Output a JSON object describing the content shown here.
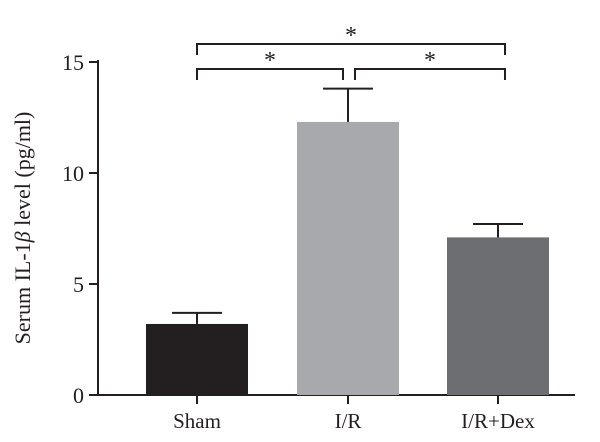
{
  "chart_data": {
    "type": "bar",
    "ylabel_prefix": "Serum IL-1",
    "ylabel_symbol": "β",
    "ylabel_suffix": " level (pg/ml)",
    "categories": [
      "Sham",
      "I/R",
      "I/R+Dex"
    ],
    "values": [
      3.2,
      12.3,
      7.1
    ],
    "errors": [
      0.5,
      1.5,
      0.6
    ],
    "ylim": [
      0,
      15
    ],
    "yticks": [
      0,
      5,
      10,
      15
    ],
    "bar_colors": [
      "#231f20",
      "#a7a9ac",
      "#6d6e71"
    ],
    "significance": [
      {
        "from": 0,
        "to": 1,
        "label": "*"
      },
      {
        "from": 1,
        "to": 2,
        "label": "*"
      },
      {
        "from": 0,
        "to": 2,
        "label": "*"
      }
    ]
  }
}
